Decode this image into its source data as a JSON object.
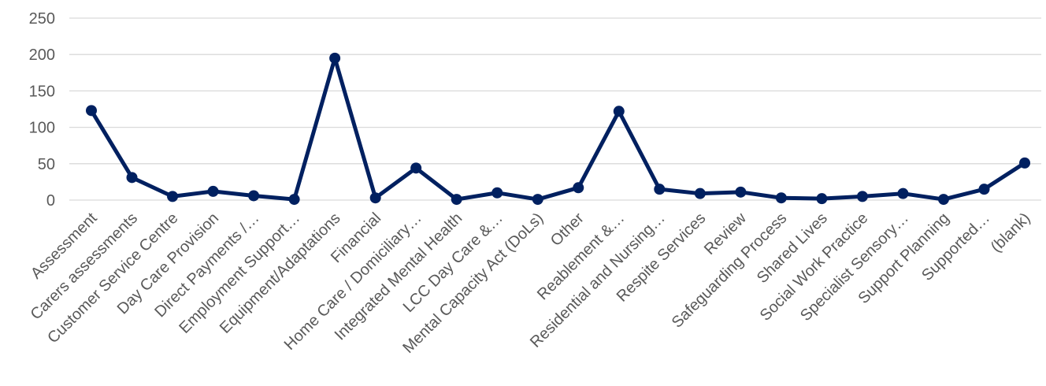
{
  "chart_data": {
    "type": "line",
    "title": "",
    "xlabel": "",
    "ylabel": "",
    "ylim": [
      0,
      250
    ],
    "yticks": [
      0,
      50,
      100,
      150,
      200,
      250
    ],
    "grid": true,
    "legend": "none",
    "categories": [
      "Assessment",
      "Carers assessments",
      "Customer Service Centre",
      "Day Care Provision",
      "Direct Payments /…",
      "Employment Support…",
      "Equipment/Adaptations",
      "Financial",
      "Home Care / Domiciliary…",
      "Integrated Mental Health",
      "LCC Day Care &…",
      "Mental Capacity Act (DoLs)",
      "Other",
      "Reablement &…",
      "Residential and Nursing…",
      "Respite Services",
      "Review",
      "Safeguarding Process",
      "Shared Lives",
      "Social Work Practice",
      "Specialist Sensory…",
      "Support Planning",
      "Supported…",
      "(blank)"
    ],
    "series": [
      {
        "values": [
          123,
          31,
          5,
          12,
          6,
          1,
          195,
          3,
          44,
          1,
          10,
          1,
          17,
          122,
          15,
          9,
          11,
          3,
          2,
          5,
          9,
          1,
          15,
          51
        ],
        "color": "#002060"
      }
    ]
  }
}
